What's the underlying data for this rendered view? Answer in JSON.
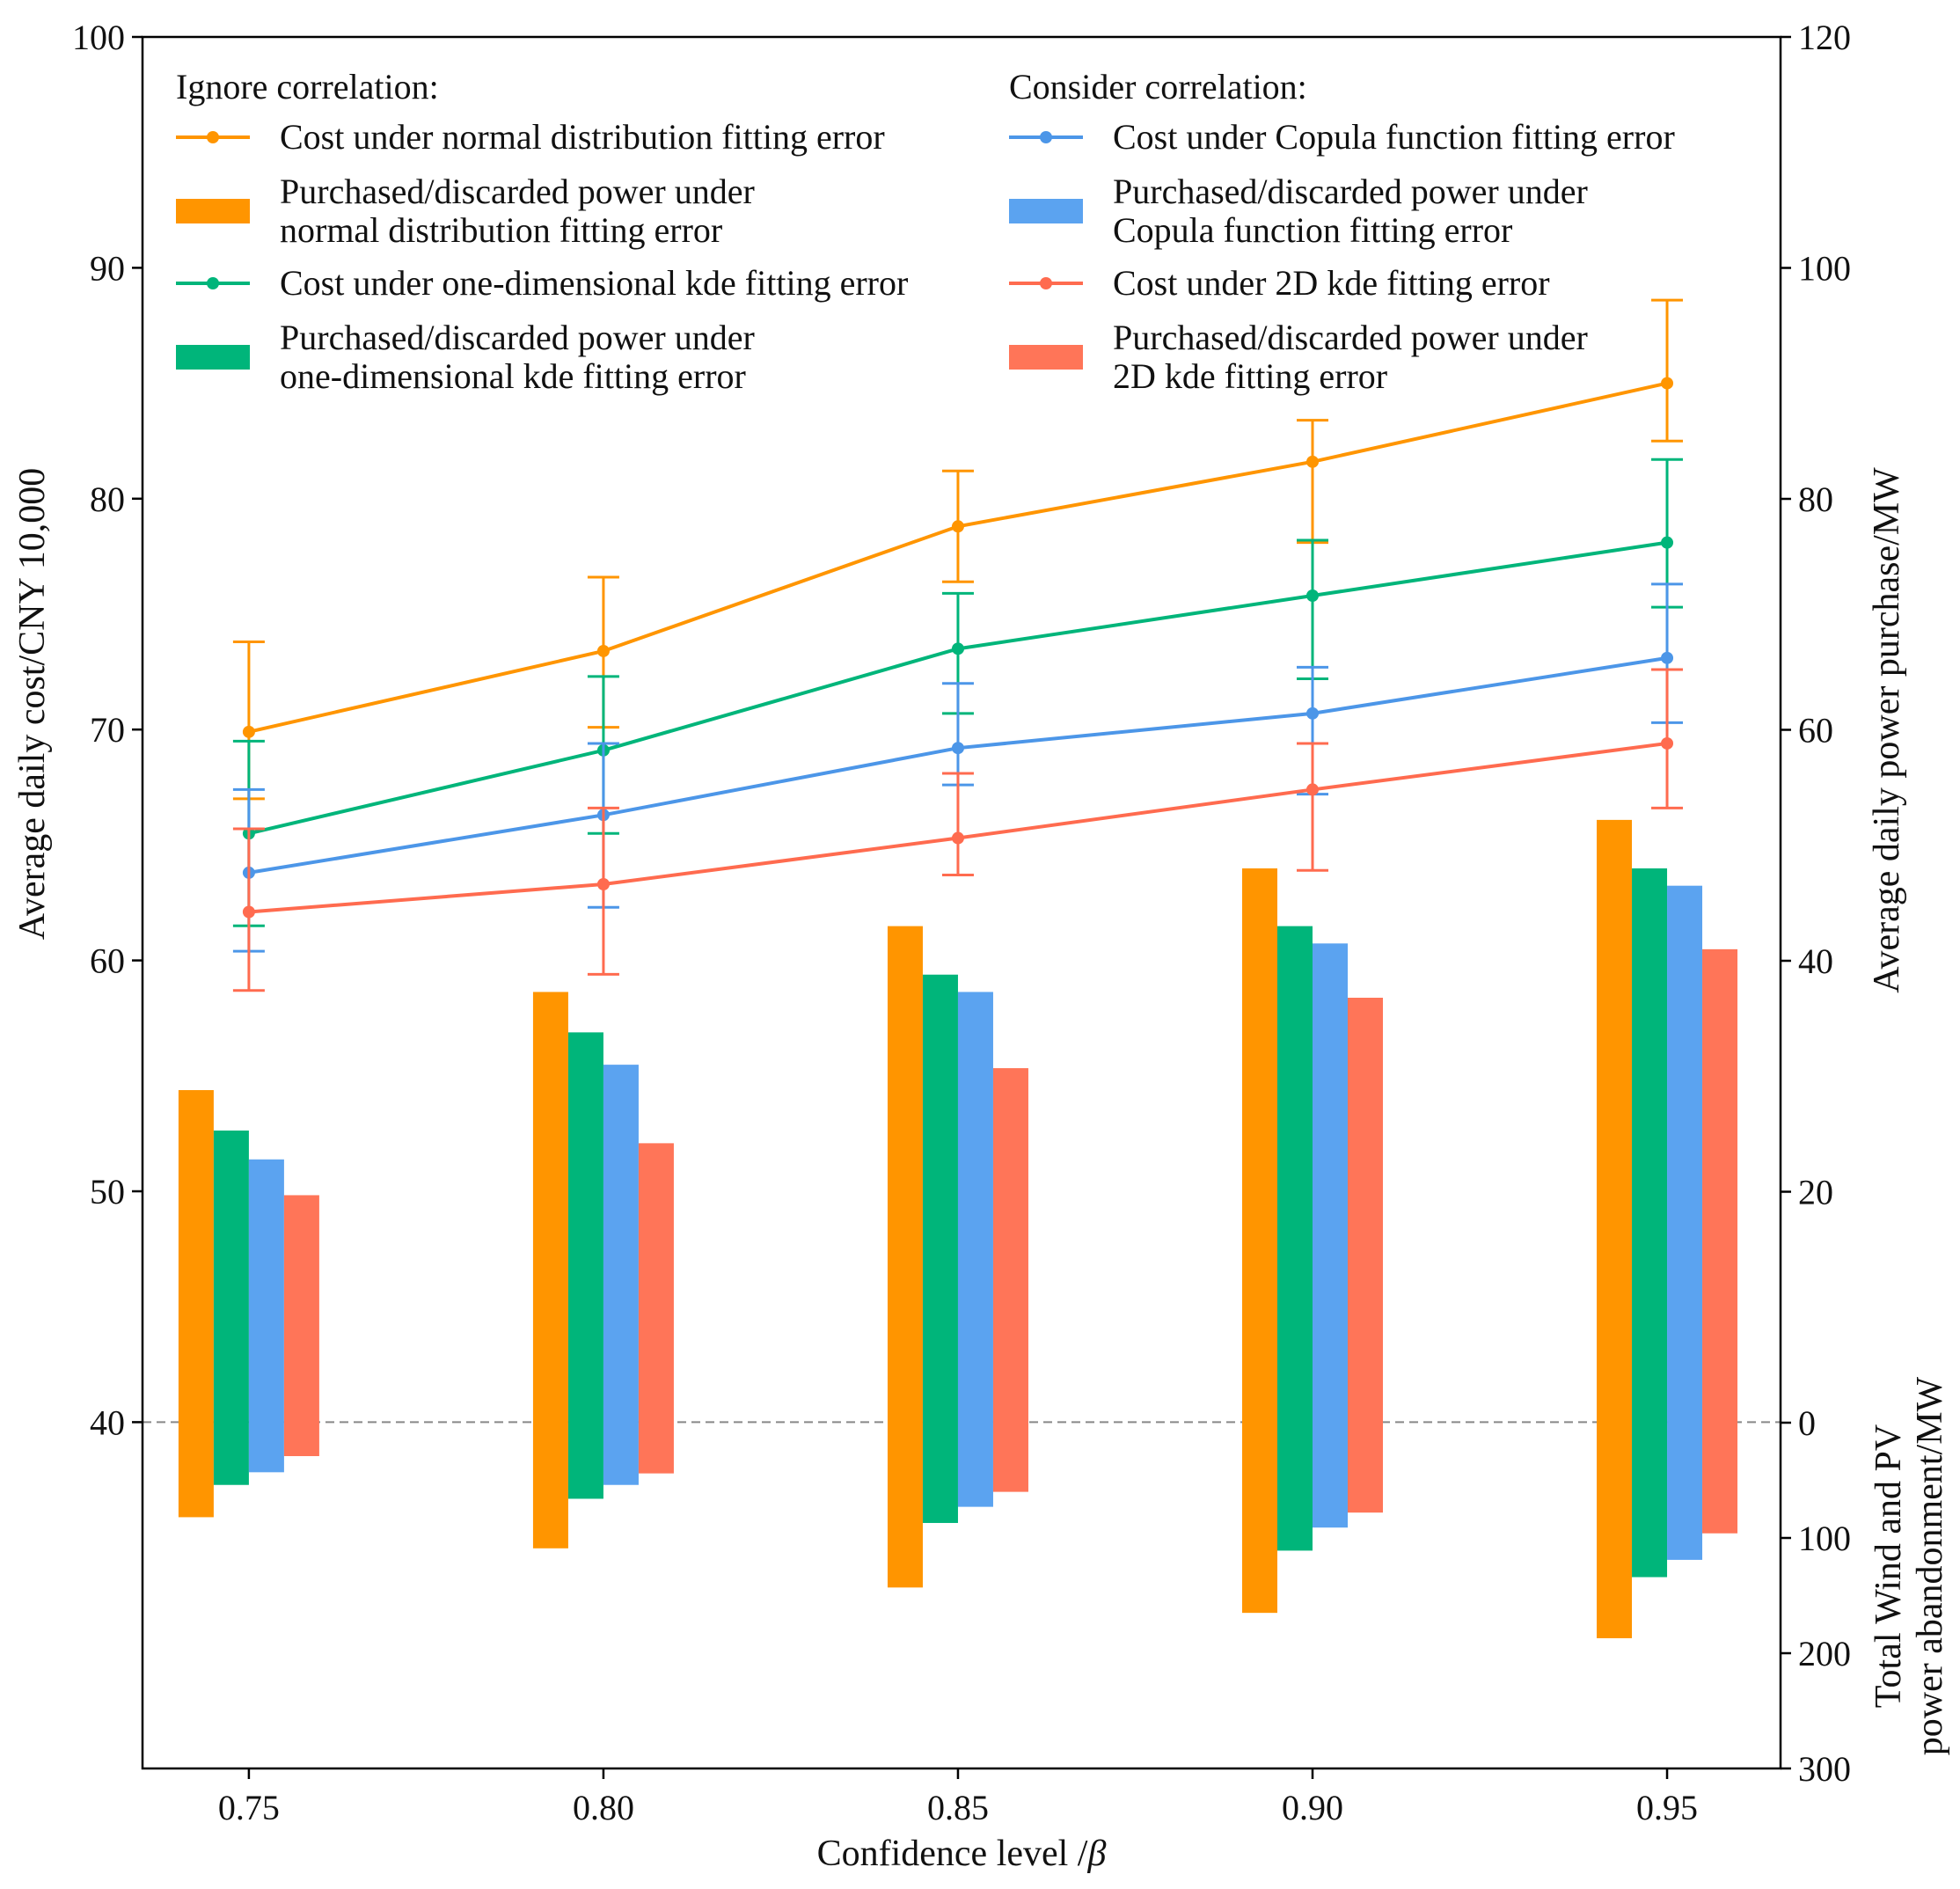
{
  "chart_data": {
    "type": "bar+line",
    "xlabel": "Confidence level /",
    "xlabel_symbol": "β",
    "ylabel_left": "Average daily cost/CNY 10,000",
    "ylabel_right_top": "Average daily power purchase/MW",
    "ylabel_right_bottom_1": "Total Wind and PV",
    "ylabel_right_bottom_2": "power abandonment/MW",
    "x": [
      0.75,
      0.8,
      0.85,
      0.9,
      0.95
    ],
    "x_tick_labels": [
      "0.75",
      "0.80",
      "0.85",
      "0.90",
      "0.95"
    ],
    "xlim": [
      0.735,
      0.966
    ],
    "left_axis": {
      "ylim": [
        25,
        100
      ],
      "ticks": [
        40,
        50,
        60,
        70,
        80,
        90,
        100
      ],
      "tick_labels": [
        "40",
        "50",
        "60",
        "70",
        "80",
        "90",
        "100"
      ]
    },
    "right_axis_top": {
      "ylim": [
        0,
        120
      ],
      "ticks": [
        0,
        20,
        40,
        60,
        80,
        100,
        120
      ],
      "tick_labels": [
        "0",
        "20",
        "40",
        "60",
        "80",
        "100",
        "120"
      ]
    },
    "right_axis_bottom": {
      "ylim": [
        0,
        300
      ],
      "ticks": [
        100,
        200,
        300
      ],
      "tick_labels": [
        "100",
        "200",
        "300"
      ]
    },
    "zero_line_cost_value": 40,
    "legend": {
      "left_heading": "Ignore correlation:",
      "right_heading": "Consider correlation:",
      "entries": [
        {
          "kind": "line",
          "color": "#FF9500",
          "lines": [
            "Cost under normal distribution fitting error"
          ]
        },
        {
          "kind": "bar",
          "color": "#FF9500",
          "lines": [
            "Purchased/discarded power under",
            "normal distribution fitting error"
          ]
        },
        {
          "kind": "line",
          "color": "#00B57A",
          "lines": [
            "Cost under one-dimensional kde fitting error"
          ]
        },
        {
          "kind": "bar",
          "color": "#00B57A",
          "lines": [
            "Purchased/discarded power under",
            "one-dimensional kde fitting error"
          ]
        },
        {
          "kind": "line",
          "color": "#4C96E8",
          "lines": [
            "Cost under Copula function fitting error"
          ]
        },
        {
          "kind": "bar",
          "color": "#5BA3F0",
          "lines": [
            "Purchased/discarded power under",
            "Copula function fitting error"
          ]
        },
        {
          "kind": "line",
          "color": "#FF6B4F",
          "lines": [
            "Cost under 2D kde fitting error"
          ]
        },
        {
          "kind": "bar",
          "color": "#FF7558",
          "lines": [
            "Purchased/discarded power under",
            "2D kde fitting error"
          ]
        }
      ]
    },
    "line_series": [
      {
        "name": "Cost under normal distribution fitting error",
        "color": "#FF9500",
        "values": [
          69.9,
          73.4,
          78.8,
          81.6,
          85.0
        ],
        "err_low": [
          67.0,
          70.1,
          76.4,
          78.1,
          82.5
        ],
        "err_high": [
          73.8,
          76.6,
          81.2,
          83.4,
          88.6
        ]
      },
      {
        "name": "Cost under one-dimensional kde fitting error",
        "color": "#00B57A",
        "values": [
          65.5,
          69.1,
          73.5,
          75.8,
          78.1
        ],
        "err_low": [
          61.5,
          65.5,
          70.7,
          72.2,
          75.3
        ],
        "err_high": [
          69.5,
          72.3,
          75.9,
          78.2,
          81.7
        ]
      },
      {
        "name": "Cost under Copula function fitting error",
        "color": "#4C96E8",
        "values": [
          63.8,
          66.3,
          69.2,
          70.7,
          73.1
        ],
        "err_low": [
          60.4,
          62.3,
          67.6,
          67.2,
          70.3
        ],
        "err_high": [
          67.4,
          69.4,
          72.0,
          72.7,
          76.3
        ]
      },
      {
        "name": "Cost under 2D kde fitting error",
        "color": "#FF6B4F",
        "values": [
          62.1,
          63.3,
          65.3,
          67.4,
          69.4
        ],
        "err_low": [
          58.7,
          59.4,
          63.7,
          63.9,
          66.6
        ],
        "err_high": [
          65.7,
          66.6,
          68.1,
          69.4,
          72.6
        ]
      }
    ],
    "bar_series": [
      {
        "name": "Purchased/discarded power under normal distribution fitting error",
        "color": "#FF9500",
        "purchase": [
          28.8,
          37.3,
          43.0,
          48.0,
          52.2
        ],
        "abandonment": [
          82,
          109,
          143,
          165,
          187
        ]
      },
      {
        "name": "Purchased/discarded power under one-dimensional kde fitting error",
        "color": "#00B57A",
        "purchase": [
          25.3,
          33.8,
          38.8,
          43.0,
          48.0
        ],
        "abandonment": [
          54,
          66,
          87,
          111,
          134
        ]
      },
      {
        "name": "Purchased/discarded power under Copula function fitting error",
        "color": "#5BA3F0",
        "purchase": [
          22.8,
          31.0,
          37.3,
          41.5,
          46.5
        ],
        "abandonment": [
          43,
          54,
          73,
          91,
          119
        ]
      },
      {
        "name": "Purchased/discarded power under 2D kde fitting error",
        "color": "#FF7558",
        "purchase": [
          19.7,
          24.2,
          30.7,
          36.8,
          41.0
        ],
        "abandonment": [
          29,
          44,
          60,
          78,
          96
        ]
      }
    ]
  }
}
